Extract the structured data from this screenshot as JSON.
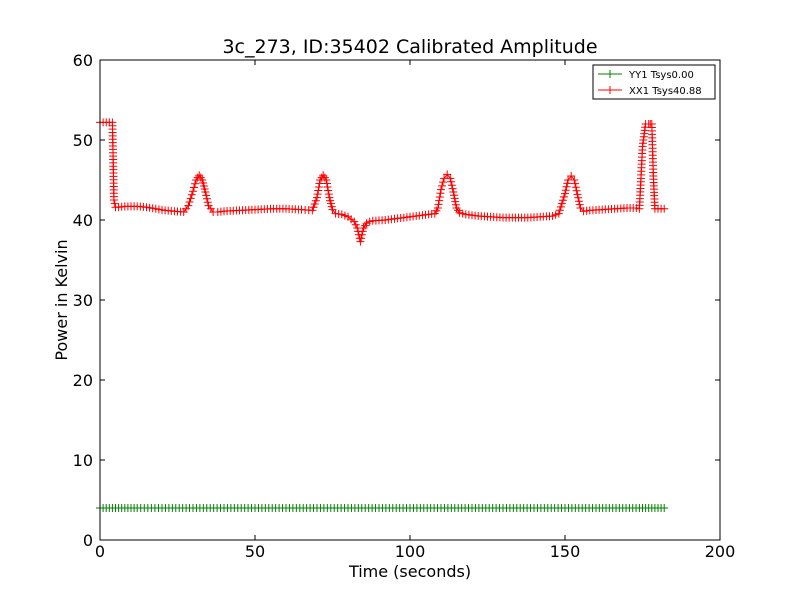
{
  "chart_data": {
    "type": "line",
    "title": "3c_273, ID:35402 Calibrated Amplitude",
    "xlabel": "Time (seconds)",
    "ylabel": "Power in Kelvin",
    "xlim": [
      0,
      200
    ],
    "ylim": [
      0,
      60
    ],
    "xticks": [
      0,
      50,
      100,
      150,
      200
    ],
    "yticks": [
      0,
      10,
      20,
      30,
      40,
      50,
      60
    ],
    "grid": false,
    "legend_position": "top-right",
    "marker": "+",
    "series": [
      {
        "name": "YY1 Tsys0.00",
        "color": "#008000",
        "x": [
          0,
          3,
          6,
          9,
          12,
          20,
          40,
          60,
          80,
          100,
          120,
          140,
          160,
          174,
          176,
          178,
          180,
          182
        ],
        "y": [
          4.0,
          4.0,
          4.0,
          4.0,
          4.0,
          4.0,
          4.0,
          4.0,
          4.0,
          4.0,
          4.0,
          4.0,
          4.0,
          4.0,
          4.0,
          4.0,
          4.0,
          4.0
        ]
      },
      {
        "name": "XX1 Tsys40.88",
        "color": "#ff0000",
        "x": [
          0,
          1,
          2,
          3,
          4,
          4.5,
          5,
          6,
          8,
          10,
          12,
          15,
          18,
          21,
          24,
          27,
          28.5,
          30,
          31,
          32,
          33,
          34,
          35,
          36.5,
          38,
          40,
          45,
          50,
          55,
          60,
          65,
          68.5,
          70,
          71,
          72,
          73,
          74,
          75,
          76,
          78,
          80,
          82,
          83,
          84,
          85,
          86,
          87,
          88,
          92,
          96,
          100,
          104,
          108,
          109,
          110,
          111,
          112,
          113,
          114,
          115,
          116,
          118,
          122,
          126,
          130,
          134,
          138,
          142,
          146,
          148,
          150,
          151,
          152,
          153,
          154,
          155,
          156,
          158,
          162,
          166,
          170,
          172,
          173,
          174,
          174.5,
          175,
          176,
          177,
          177.5,
          178,
          178.5,
          179,
          180,
          181,
          182
        ],
        "y": [
          52.2,
          52.2,
          52.2,
          52.2,
          52.2,
          42.5,
          41.6,
          41.6,
          41.7,
          41.7,
          41.7,
          41.6,
          41.4,
          41.2,
          41.1,
          41.0,
          41.8,
          43.6,
          45.0,
          45.6,
          45.0,
          43.5,
          41.8,
          41.0,
          41.0,
          41.1,
          41.2,
          41.3,
          41.4,
          41.4,
          41.3,
          41.2,
          42.8,
          45.0,
          45.6,
          45.0,
          42.8,
          41.3,
          40.8,
          40.7,
          40.4,
          39.8,
          39.0,
          37.3,
          39.0,
          39.6,
          39.8,
          39.9,
          40.0,
          40.2,
          40.4,
          40.6,
          40.8,
          41.5,
          43.8,
          45.2,
          45.7,
          45.2,
          43.5,
          41.5,
          40.9,
          40.7,
          40.5,
          40.4,
          40.3,
          40.3,
          40.3,
          40.4,
          40.5,
          40.8,
          43.3,
          45.0,
          45.5,
          45.0,
          43.2,
          41.5,
          41.1,
          41.2,
          41.3,
          41.4,
          41.5,
          41.5,
          41.5,
          41.4,
          45.2,
          49.2,
          52.0,
          52.0,
          52.0,
          52.0,
          45.5,
          41.4,
          41.4,
          41.4,
          41.4
        ]
      }
    ]
  }
}
